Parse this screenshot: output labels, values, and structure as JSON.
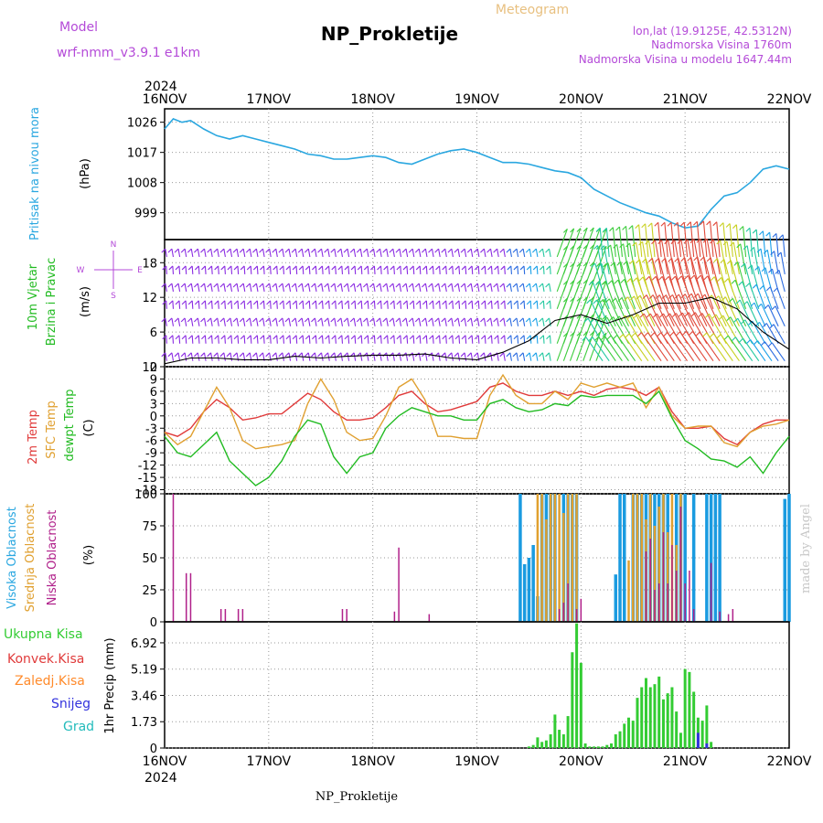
{
  "header": {
    "model_label": "Model",
    "model_name": "wrf-nmm_v3.9.1  e1km",
    "title": "NP_Prokletije",
    "subtitle": "Meteogram",
    "location": "lon,lat (19.9125E, 42.5312N)",
    "elevation": "Nadmorska Visina 1760m",
    "model_elevation": "Nadmorska Visina u modelu 1647.44m",
    "year_top": "2024",
    "year_bottom": "2024",
    "footer": "NP_Prokletije",
    "credit": "made by Angel"
  },
  "x_axis": {
    "labels": [
      "16NOV",
      "17NOV",
      "18NOV",
      "19NOV",
      "20NOV",
      "21NOV",
      "22NOV"
    ]
  },
  "colors": {
    "pressure": "#2aa7e0",
    "wind_label": "#22bb22",
    "temp2m": "#e03a3a",
    "sfc": "#e0a030",
    "dewpt": "#22bb22",
    "cloud_high": "#1a9be0",
    "cloud_mid": "#e0a030",
    "cloud_low": "#b0208a",
    "precip_total": "#33cc33",
    "precip_conv": "#e03a3a",
    "precip_frz": "#ff8a2a",
    "precip_snow": "#3333dd",
    "precip_graup": "#22bbbb",
    "magenta": "#b44ad8"
  },
  "panels": {
    "pressure": {
      "ylabel": "Pritisak na nivou mora",
      "unit": "(hPa)",
      "ticks": [
        "1026",
        "1017",
        "1008",
        "999"
      ]
    },
    "wind": {
      "ylabel_1": "10m Vjetar",
      "ylabel_2": "Brzina i Pravac",
      "unit": "(m/s)",
      "ticks": [
        "18",
        "12",
        "6",
        "0"
      ],
      "compass_n": "N",
      "compass_w": "W",
      "compass_e": "E",
      "compass_s": "S"
    },
    "temp": {
      "ylabel_1": "2m Temp",
      "ylabel_2": "SFC Temp",
      "ylabel_3": "dewpt Temp",
      "unit": "(C)",
      "ticks": [
        "12",
        "9",
        "6",
        "3",
        "0",
        "-3",
        "-6",
        "-9",
        "-12",
        "-15",
        "-18"
      ]
    },
    "cloud": {
      "ylabel_1": "Visoka Oblacnost",
      "ylabel_2": "Srednja Oblacnost",
      "ylabel_3": "Niska Oblacnost",
      "unit": "(%)",
      "ticks": [
        "100",
        "75",
        "50",
        "25",
        "0"
      ]
    },
    "precip": {
      "legend_total": "Ukupna Kisa",
      "legend_conv": "Konvek.Kisa",
      "legend_frz": "Zaledj.Kisa",
      "legend_snow": "Snijeg",
      "legend_graup": "Grad",
      "ylabel": "1hr Precip (mm)",
      "ticks": [
        "6.92",
        "5.19",
        "3.46",
        "1.73",
        "0"
      ]
    }
  },
  "chart_data": [
    {
      "type": "line",
      "title": "Pritisak na nivou mora",
      "ylabel": "(hPa)",
      "ylim": [
        991,
        1030
      ],
      "x_unit_hours_from": "16NOV 00",
      "x": [
        0,
        2,
        4,
        6,
        9,
        12,
        15,
        18,
        21,
        24,
        27,
        30,
        33,
        36,
        39,
        42,
        45,
        48,
        51,
        54,
        57,
        60,
        63,
        66,
        69,
        72,
        75,
        78,
        81,
        84,
        87,
        90,
        93,
        96,
        99,
        102,
        105,
        108,
        111,
        114,
        117,
        120,
        123,
        126,
        129,
        132,
        135,
        138,
        141,
        144
      ],
      "series": [
        {
          "values": [
            1024,
            1027,
            1026,
            1026.5,
            1024,
            1022,
            1021,
            1022,
            1021,
            1020,
            1019,
            1018,
            1016.5,
            1016,
            1015,
            1015,
            1015.5,
            1016,
            1015.5,
            1014,
            1013.5,
            1015,
            1016.5,
            1017.5,
            1018,
            1017,
            1015.5,
            1014,
            1014,
            1013.5,
            1012.5,
            1011.5,
            1011,
            1009.5,
            1006,
            1004,
            1002,
            1000.5,
            999,
            998,
            996,
            994.5,
            995,
            1000,
            1004,
            1005,
            1008,
            1012,
            1013,
            1012
          ]
        }
      ]
    },
    {
      "type": "line",
      "title": "10m Vjetar Brzina i Pravac",
      "ylabel": "(m/s)",
      "ylim": [
        0,
        22
      ],
      "x_unit_hours_from": "16NOV 00",
      "x": [
        0,
        6,
        12,
        18,
        24,
        30,
        36,
        42,
        48,
        54,
        60,
        66,
        72,
        78,
        84,
        90,
        96,
        102,
        108,
        114,
        120,
        126,
        132,
        138,
        144
      ],
      "series": [
        {
          "name": "speed",
          "values": [
            0.5,
            1.5,
            1.5,
            1.2,
            1.2,
            1.8,
            1.5,
            1.8,
            2,
            2,
            2.2,
            1.5,
            1.2,
            2.5,
            4.5,
            8,
            9,
            7.5,
            9,
            11,
            11,
            12,
            10,
            6,
            3
          ]
        }
      ]
    },
    {
      "type": "line",
      "title": "Temperature",
      "ylabel": "(C)",
      "ylim": [
        -19,
        12
      ],
      "x_unit_hours_from": "16NOV 00",
      "x": [
        0,
        3,
        6,
        9,
        12,
        15,
        18,
        21,
        24,
        27,
        30,
        33,
        36,
        39,
        42,
        45,
        48,
        51,
        54,
        57,
        60,
        63,
        66,
        69,
        72,
        75,
        78,
        81,
        84,
        87,
        90,
        93,
        96,
        99,
        102,
        105,
        108,
        111,
        114,
        117,
        120,
        123,
        126,
        129,
        132,
        135,
        138,
        141,
        144
      ],
      "series": [
        {
          "name": "2m Temp",
          "values": [
            -4,
            -5,
            -3,
            1,
            4,
            2,
            -1,
            -0.5,
            0.5,
            0.5,
            3,
            5.5,
            4,
            1,
            -1,
            -1,
            -0.5,
            2,
            5,
            6,
            3,
            1,
            1.5,
            2.5,
            3.5,
            7,
            8,
            6,
            5,
            5,
            6,
            5,
            6,
            5,
            6.5,
            7,
            6.5,
            5,
            7,
            1,
            -3,
            -3,
            -2.5,
            -5.5,
            -7,
            -4,
            -2,
            -1,
            -1
          ]
        },
        {
          "name": "SFC Temp",
          "values": [
            -4,
            -7,
            -5,
            1,
            7,
            2,
            -6,
            -8,
            -7.5,
            -7,
            -6,
            3,
            9,
            4,
            -4,
            -6,
            -5.5,
            0,
            7,
            9,
            4,
            -5,
            -5,
            -5.5,
            -5.5,
            5,
            10,
            5,
            3,
            3,
            6,
            4,
            8,
            7,
            8,
            7,
            8,
            2,
            7,
            0,
            -3,
            -2.5,
            -2.5,
            -6.5,
            -7.5,
            -4,
            -2.5,
            -2,
            -1
          ]
        },
        {
          "name": "dewpt Temp",
          "values": [
            -5,
            -9,
            -10,
            -7,
            -4,
            -11,
            -14,
            -17,
            -15,
            -11,
            -5,
            -1,
            -2,
            -10,
            -14,
            -10,
            -9,
            -3,
            0,
            2,
            1,
            0,
            0,
            -1,
            -1,
            3,
            4,
            2,
            1,
            1.5,
            3,
            2.5,
            5,
            4.5,
            5,
            5,
            5,
            3,
            6,
            -0.5,
            -6,
            -8,
            -10.5,
            -11,
            -12.5,
            -10,
            -14,
            -9,
            -5
          ]
        }
      ]
    },
    {
      "type": "bar",
      "title": "Oblacnost",
      "ylabel": "(%)",
      "ylim": [
        0,
        100
      ],
      "x_unit_hours_from": "16NOV 00",
      "series": [
        {
          "name": "Visoka Oblacnost",
          "x": [
            82,
            83,
            84,
            85,
            86,
            87,
            88,
            89,
            90,
            91,
            92,
            93,
            94,
            95,
            96,
            97,
            98,
            99,
            100,
            101,
            102,
            103,
            104,
            105,
            106,
            107,
            108,
            109,
            110,
            111,
            112,
            113,
            114,
            115,
            116,
            117,
            118,
            119,
            120,
            121,
            122,
            123,
            124,
            125,
            126,
            127,
            128,
            143,
            144
          ],
          "values": [
            100,
            45,
            50,
            60,
            20,
            100,
            100,
            100,
            100,
            0,
            100,
            100,
            100,
            100,
            0,
            0,
            0,
            0,
            0,
            0,
            0,
            0,
            37,
            100,
            100,
            0,
            100,
            100,
            100,
            100,
            100,
            100,
            100,
            100,
            100,
            0,
            100,
            100,
            100,
            0,
            100,
            0,
            0,
            100,
            100,
            100,
            100,
            96,
            100
          ]
        },
        {
          "name": "Srednja Oblacnost",
          "x": [
            84,
            85,
            86,
            87,
            88,
            89,
            90,
            91,
            92,
            93,
            94,
            95,
            96,
            104,
            107,
            108,
            109,
            110,
            111,
            112,
            113,
            114,
            115,
            116,
            117,
            118,
            119
          ],
          "values": [
            0,
            0,
            100,
            100,
            80,
            100,
            100,
            100,
            85,
            100,
            100,
            100,
            0,
            0,
            48,
            100,
            100,
            100,
            80,
            100,
            75,
            90,
            100,
            70,
            100,
            60,
            100
          ]
        },
        {
          "name": "Niska Oblacnost",
          "x": [
            2,
            5,
            6,
            13,
            14,
            17,
            18,
            41,
            42,
            53,
            54,
            61,
            91,
            92,
            93,
            95,
            96,
            111,
            112,
            113,
            114,
            115,
            116,
            117,
            118,
            119,
            120,
            121,
            122,
            126,
            128,
            130,
            131
          ],
          "values": [
            100,
            38,
            38,
            10,
            10,
            10,
            10,
            10,
            10,
            8,
            58,
            6,
            10,
            15,
            30,
            10,
            18,
            55,
            65,
            25,
            30,
            70,
            30,
            60,
            40,
            90,
            30,
            40,
            10,
            46,
            8,
            6,
            10
          ]
        }
      ]
    },
    {
      "type": "bar",
      "title": "1hr Precip",
      "ylabel": "1hr Precip (mm)",
      "ylim": [
        0,
        8.3
      ],
      "x_unit_hours_from": "16NOV 00",
      "series": [
        {
          "name": "Ukupna Kisa",
          "x": [
            84,
            85,
            86,
            87,
            88,
            89,
            90,
            91,
            92,
            93,
            94,
            95,
            96,
            97,
            98,
            99,
            100,
            101,
            102,
            103,
            104,
            105,
            106,
            107,
            108,
            109,
            110,
            111,
            112,
            113,
            114,
            115,
            116,
            117,
            118,
            119,
            120,
            121,
            122,
            123,
            124,
            125,
            126
          ],
          "values": [
            0.1,
            0.2,
            0.7,
            0.4,
            0.5,
            0.9,
            2.2,
            1.2,
            0.9,
            2.1,
            6.3,
            8.2,
            5.6,
            0.3,
            0.1,
            0.1,
            0.1,
            0.1,
            0.2,
            0.3,
            0.9,
            1.1,
            1.6,
            2.0,
            1.8,
            3.3,
            4.0,
            4.6,
            4.0,
            4.2,
            4.7,
            3.2,
            3.6,
            4.0,
            2.4,
            1.0,
            5.2,
            5.0,
            3.7,
            2.0,
            1.8,
            2.8,
            0.4
          ]
        },
        {
          "name": "Konvek.Kisa",
          "x": [],
          "values": []
        },
        {
          "name": "Zaledj.Kisa",
          "x": [],
          "values": []
        },
        {
          "name": "Snijeg",
          "x": [
            123,
            125
          ],
          "values": [
            1.0,
            0.3
          ]
        },
        {
          "name": "Grad",
          "x": [],
          "values": []
        }
      ]
    }
  ]
}
